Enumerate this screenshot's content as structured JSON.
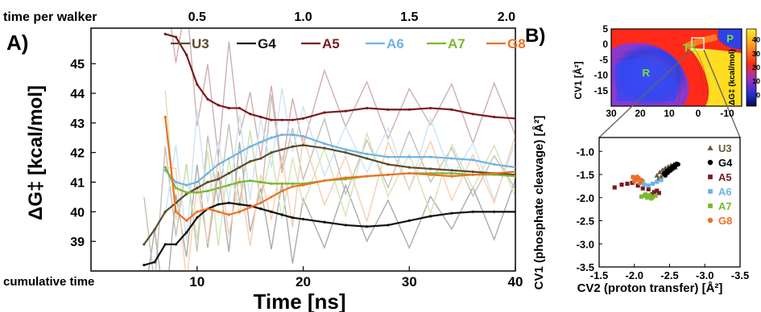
{
  "chart_data": [
    {
      "panel_label": "A)",
      "type": "line",
      "xlabel": "Time [ns]",
      "ylabel": "ΔG‡ [kcal/mol]",
      "xlim": [
        0,
        40
      ],
      "ylim": [
        38,
        46.2
      ],
      "x_ticks": [
        10,
        20,
        30,
        40
      ],
      "y_ticks": [
        39,
        40,
        41,
        42,
        43,
        44,
        45
      ],
      "top_axis_label": "time per walker",
      "top_ticks": [
        "0.5",
        "1.0",
        "1.5",
        "2.0"
      ],
      "bottom_axis_note": "cumulative time",
      "legend_placement": "top",
      "series": [
        {
          "name": "U3",
          "color": "#5b4a2e",
          "x": [
            5,
            6,
            7,
            8,
            9,
            10,
            11,
            12,
            13,
            14,
            15,
            16,
            17,
            18,
            19,
            20,
            22,
            24,
            26,
            28,
            30,
            32,
            34,
            36,
            38,
            40
          ],
          "values": [
            38.9,
            39.4,
            40.0,
            40.3,
            40.6,
            40.8,
            41.0,
            41.1,
            41.3,
            41.5,
            41.7,
            41.8,
            42.0,
            42.1,
            42.2,
            42.25,
            42.15,
            42.0,
            41.8,
            41.6,
            41.5,
            41.45,
            41.4,
            41.35,
            41.3,
            41.25
          ]
        },
        {
          "name": "G4",
          "color": "#111111",
          "x": [
            5,
            6,
            7,
            8,
            9,
            10,
            11,
            12,
            13,
            14,
            15,
            16,
            17,
            18,
            19,
            20,
            22,
            24,
            26,
            28,
            30,
            32,
            34,
            36,
            38,
            40
          ],
          "values": [
            38.2,
            38.3,
            38.9,
            38.9,
            39.3,
            39.8,
            40.1,
            40.25,
            40.3,
            40.25,
            40.2,
            40.1,
            40.0,
            39.9,
            39.8,
            39.75,
            39.65,
            39.55,
            39.5,
            39.55,
            39.7,
            39.85,
            39.95,
            40.0,
            40.0,
            40.0
          ]
        },
        {
          "name": "A5",
          "color": "#7a1a1e",
          "x": [
            7,
            8,
            9,
            10,
            11,
            12,
            13,
            14,
            15,
            16,
            17,
            18,
            19,
            20,
            22,
            24,
            26,
            28,
            30,
            32,
            34,
            36,
            38,
            40
          ],
          "values": [
            46.0,
            45.9,
            45.3,
            44.3,
            43.8,
            43.6,
            43.5,
            43.5,
            43.3,
            43.2,
            43.1,
            43.1,
            43.1,
            43.15,
            43.35,
            43.4,
            43.5,
            43.45,
            43.45,
            43.5,
            43.45,
            43.3,
            43.2,
            43.15
          ]
        },
        {
          "name": "A6",
          "color": "#6cb4e4",
          "x": [
            7,
            8,
            9,
            10,
            11,
            12,
            13,
            14,
            15,
            16,
            17,
            18,
            19,
            20,
            22,
            24,
            26,
            28,
            30,
            32,
            34,
            36,
            38,
            40
          ],
          "values": [
            41.4,
            41.0,
            40.9,
            41.0,
            41.3,
            41.6,
            41.8,
            42.0,
            42.2,
            42.35,
            42.5,
            42.6,
            42.6,
            42.55,
            42.3,
            42.1,
            41.95,
            41.85,
            41.85,
            41.85,
            41.8,
            41.75,
            41.6,
            41.5
          ]
        },
        {
          "name": "A7",
          "color": "#7ab82e",
          "x": [
            7,
            8,
            9,
            10,
            11,
            12,
            13,
            14,
            15,
            16,
            17,
            18,
            19,
            20,
            22,
            24,
            26,
            28,
            30,
            32,
            34,
            36,
            38,
            40
          ],
          "values": [
            41.5,
            40.8,
            40.65,
            40.65,
            40.7,
            40.8,
            40.9,
            41.0,
            41.05,
            41.0,
            40.95,
            40.95,
            40.95,
            40.95,
            41.05,
            41.1,
            41.2,
            41.25,
            41.3,
            41.3,
            41.3,
            41.25,
            41.25,
            41.2
          ]
        },
        {
          "name": "G8",
          "color": "#f07020",
          "x": [
            7,
            8,
            9,
            10,
            11,
            12,
            13,
            14,
            15,
            16,
            17,
            18,
            19,
            20,
            22,
            24,
            26,
            28,
            30,
            32,
            34,
            36,
            38,
            40
          ],
          "values": [
            43.2,
            40.0,
            39.7,
            40.0,
            40.1,
            40.0,
            39.9,
            40.0,
            40.15,
            40.3,
            40.5,
            40.7,
            40.85,
            40.9,
            41.05,
            41.15,
            41.2,
            41.25,
            41.3,
            41.25,
            41.2,
            41.25,
            41.3,
            41.35
          ]
        }
      ]
    },
    {
      "panel_label": "B)",
      "type": "heatmap",
      "xlim": [
        30,
        -15
      ],
      "ylim": [
        -20,
        5
      ],
      "x_ticks": [
        30,
        20,
        10,
        0,
        -10
      ],
      "y_ticks": [
        5,
        0,
        -5,
        -10,
        -15
      ],
      "ylabel": "CV1 [Å²]",
      "colorbar_label": "ΔG‡ (kcal/mol)",
      "colorbar_ticks": [
        40,
        30,
        20,
        10,
        0
      ],
      "colorbar_range": [
        -8,
        48
      ],
      "region_labels": [
        {
          "text": "R",
          "x": 18,
          "y": -9
        },
        {
          "text": "TS",
          "x": 3,
          "y": -1
        },
        {
          "text": "P",
          "x": -11,
          "y": 2
        }
      ],
      "colors": {
        "low": "#2222d0",
        "mid": "#ff2a1a",
        "high": "#ffe620"
      }
    },
    {
      "type": "scatter",
      "xlabel": "CV2 (proton transfer) [Å²]",
      "ylabel": "CV1 (phosphate cleavage) [Å²]",
      "xlim": [
        -1.5,
        -3.5
      ],
      "ylim": [
        -3.5,
        -0.7
      ],
      "x_ticks": [
        "-1.5",
        "-2.0",
        "-2.5",
        "-3.0",
        "-3.5"
      ],
      "y_ticks": [
        "-1.0",
        "-1.5",
        "-2.0",
        "-2.5",
        "-3.0",
        "-3.5"
      ],
      "legend_placement": "right",
      "series": [
        {
          "name": "U3",
          "color": "#6b5836",
          "marker": "triangle",
          "x": [
            -2.32,
            -2.36,
            -2.4,
            -2.44,
            -2.48,
            -2.52,
            -2.56,
            -2.34,
            -2.42,
            -2.5,
            -2.58,
            -2.38,
            -2.46,
            -2.54
          ],
          "values": [
            -1.52,
            -1.45,
            -1.4,
            -1.36,
            -1.33,
            -1.3,
            -1.28,
            -1.6,
            -1.5,
            -1.42,
            -1.35,
            -1.55,
            -1.47,
            -1.38
          ]
        },
        {
          "name": "G4",
          "color": "#000000",
          "marker": "circle",
          "x": [
            -2.42,
            -2.46,
            -2.5,
            -2.54,
            -2.57,
            -2.6,
            -2.48,
            -2.52,
            -2.56,
            -2.44,
            -2.58,
            -2.62
          ],
          "values": [
            -1.48,
            -1.42,
            -1.38,
            -1.33,
            -1.3,
            -1.27,
            -1.45,
            -1.4,
            -1.35,
            -1.52,
            -1.32,
            -1.28
          ]
        },
        {
          "name": "A5",
          "color": "#7a1a1e",
          "marker": "square",
          "x": [
            -1.72,
            -1.82,
            -1.9,
            -1.97,
            -2.05,
            -2.12,
            -2.2,
            -2.28,
            -2.35,
            -2.25,
            -2.32
          ],
          "values": [
            -1.78,
            -1.72,
            -1.7,
            -1.68,
            -1.74,
            -1.8,
            -1.82,
            -1.88,
            -1.9,
            -1.93,
            -1.85
          ]
        },
        {
          "name": "A6",
          "color": "#6cb4e4",
          "marker": "square",
          "x": [
            -1.98,
            -2.03,
            -2.08,
            -2.14,
            -2.2,
            -2.26,
            -2.32,
            -2.38,
            -2.05,
            -2.12
          ],
          "values": [
            -1.55,
            -1.62,
            -1.68,
            -1.72,
            -1.74,
            -1.7,
            -1.66,
            -1.62,
            -1.58,
            -1.65
          ]
        },
        {
          "name": "A7",
          "color": "#7ab82e",
          "marker": "square",
          "x": [
            -2.1,
            -2.14,
            -2.18,
            -2.22,
            -2.26,
            -2.3,
            -2.16,
            -2.24
          ],
          "values": [
            -1.98,
            -1.96,
            -2.0,
            -1.95,
            -1.99,
            -1.96,
            -1.93,
            -2.02
          ]
        },
        {
          "name": "G8",
          "color": "#f07020",
          "marker": "circle",
          "x": [
            -1.98,
            -2.02,
            -2.06,
            -2.1,
            -2.0,
            -2.04,
            -2.08
          ],
          "values": [
            -1.56,
            -1.6,
            -1.58,
            -1.62,
            -1.65,
            -1.55,
            -1.68
          ]
        }
      ]
    }
  ]
}
